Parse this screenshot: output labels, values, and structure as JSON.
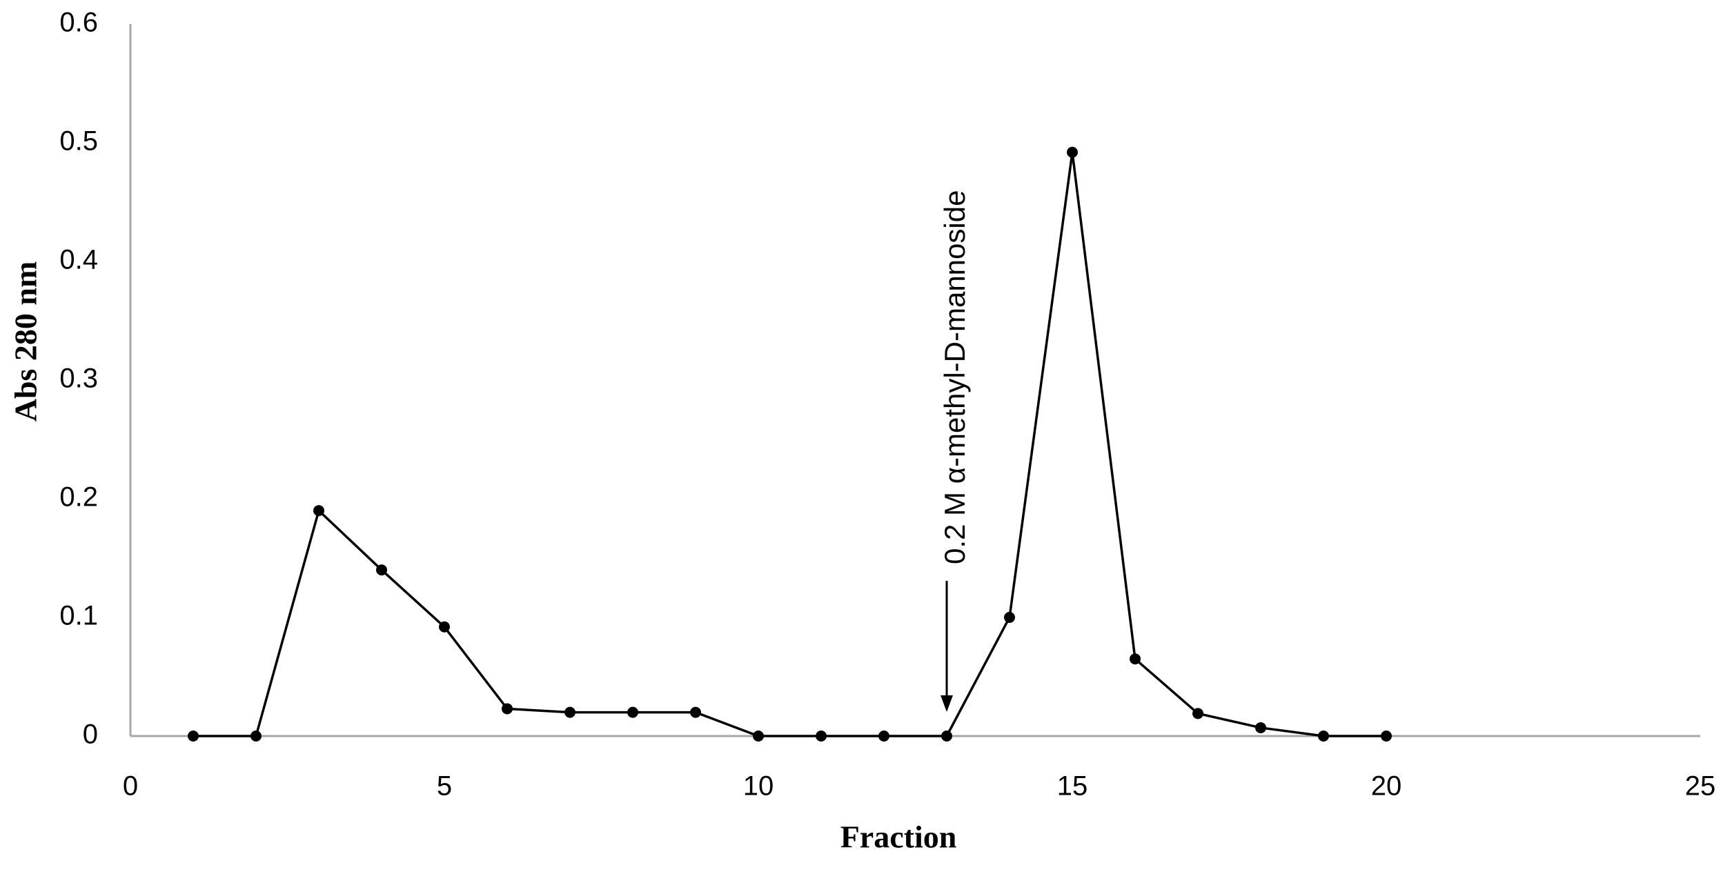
{
  "chart_data": {
    "type": "line",
    "x_label": "Fraction",
    "y_label": "Abs 280  nm",
    "x": [
      1,
      2,
      3,
      4,
      5,
      6,
      7,
      8,
      9,
      10,
      11,
      12,
      13,
      14,
      15,
      16,
      17,
      18,
      19,
      20
    ],
    "series": [
      {
        "color": "#000000",
        "values": [
          0,
          0,
          0.19,
          0.14,
          0.092,
          0.023,
          0.02,
          0.02,
          0.02,
          0,
          0,
          0,
          0,
          0.1,
          0.492,
          0.065,
          0.019,
          0.007,
          0,
          0
        ]
      }
    ],
    "xlim": [
      0,
      25
    ],
    "xticks": [
      0,
      5,
      10,
      15,
      20,
      25
    ],
    "ylim": [
      0,
      0.6
    ],
    "yticks": [
      0,
      0.1,
      0.2,
      0.3,
      0.4,
      0.5,
      0.6
    ],
    "grid": false,
    "annotation": {
      "text": "0.2 M  α-methyl-D-mannoside",
      "x": 13
    }
  }
}
